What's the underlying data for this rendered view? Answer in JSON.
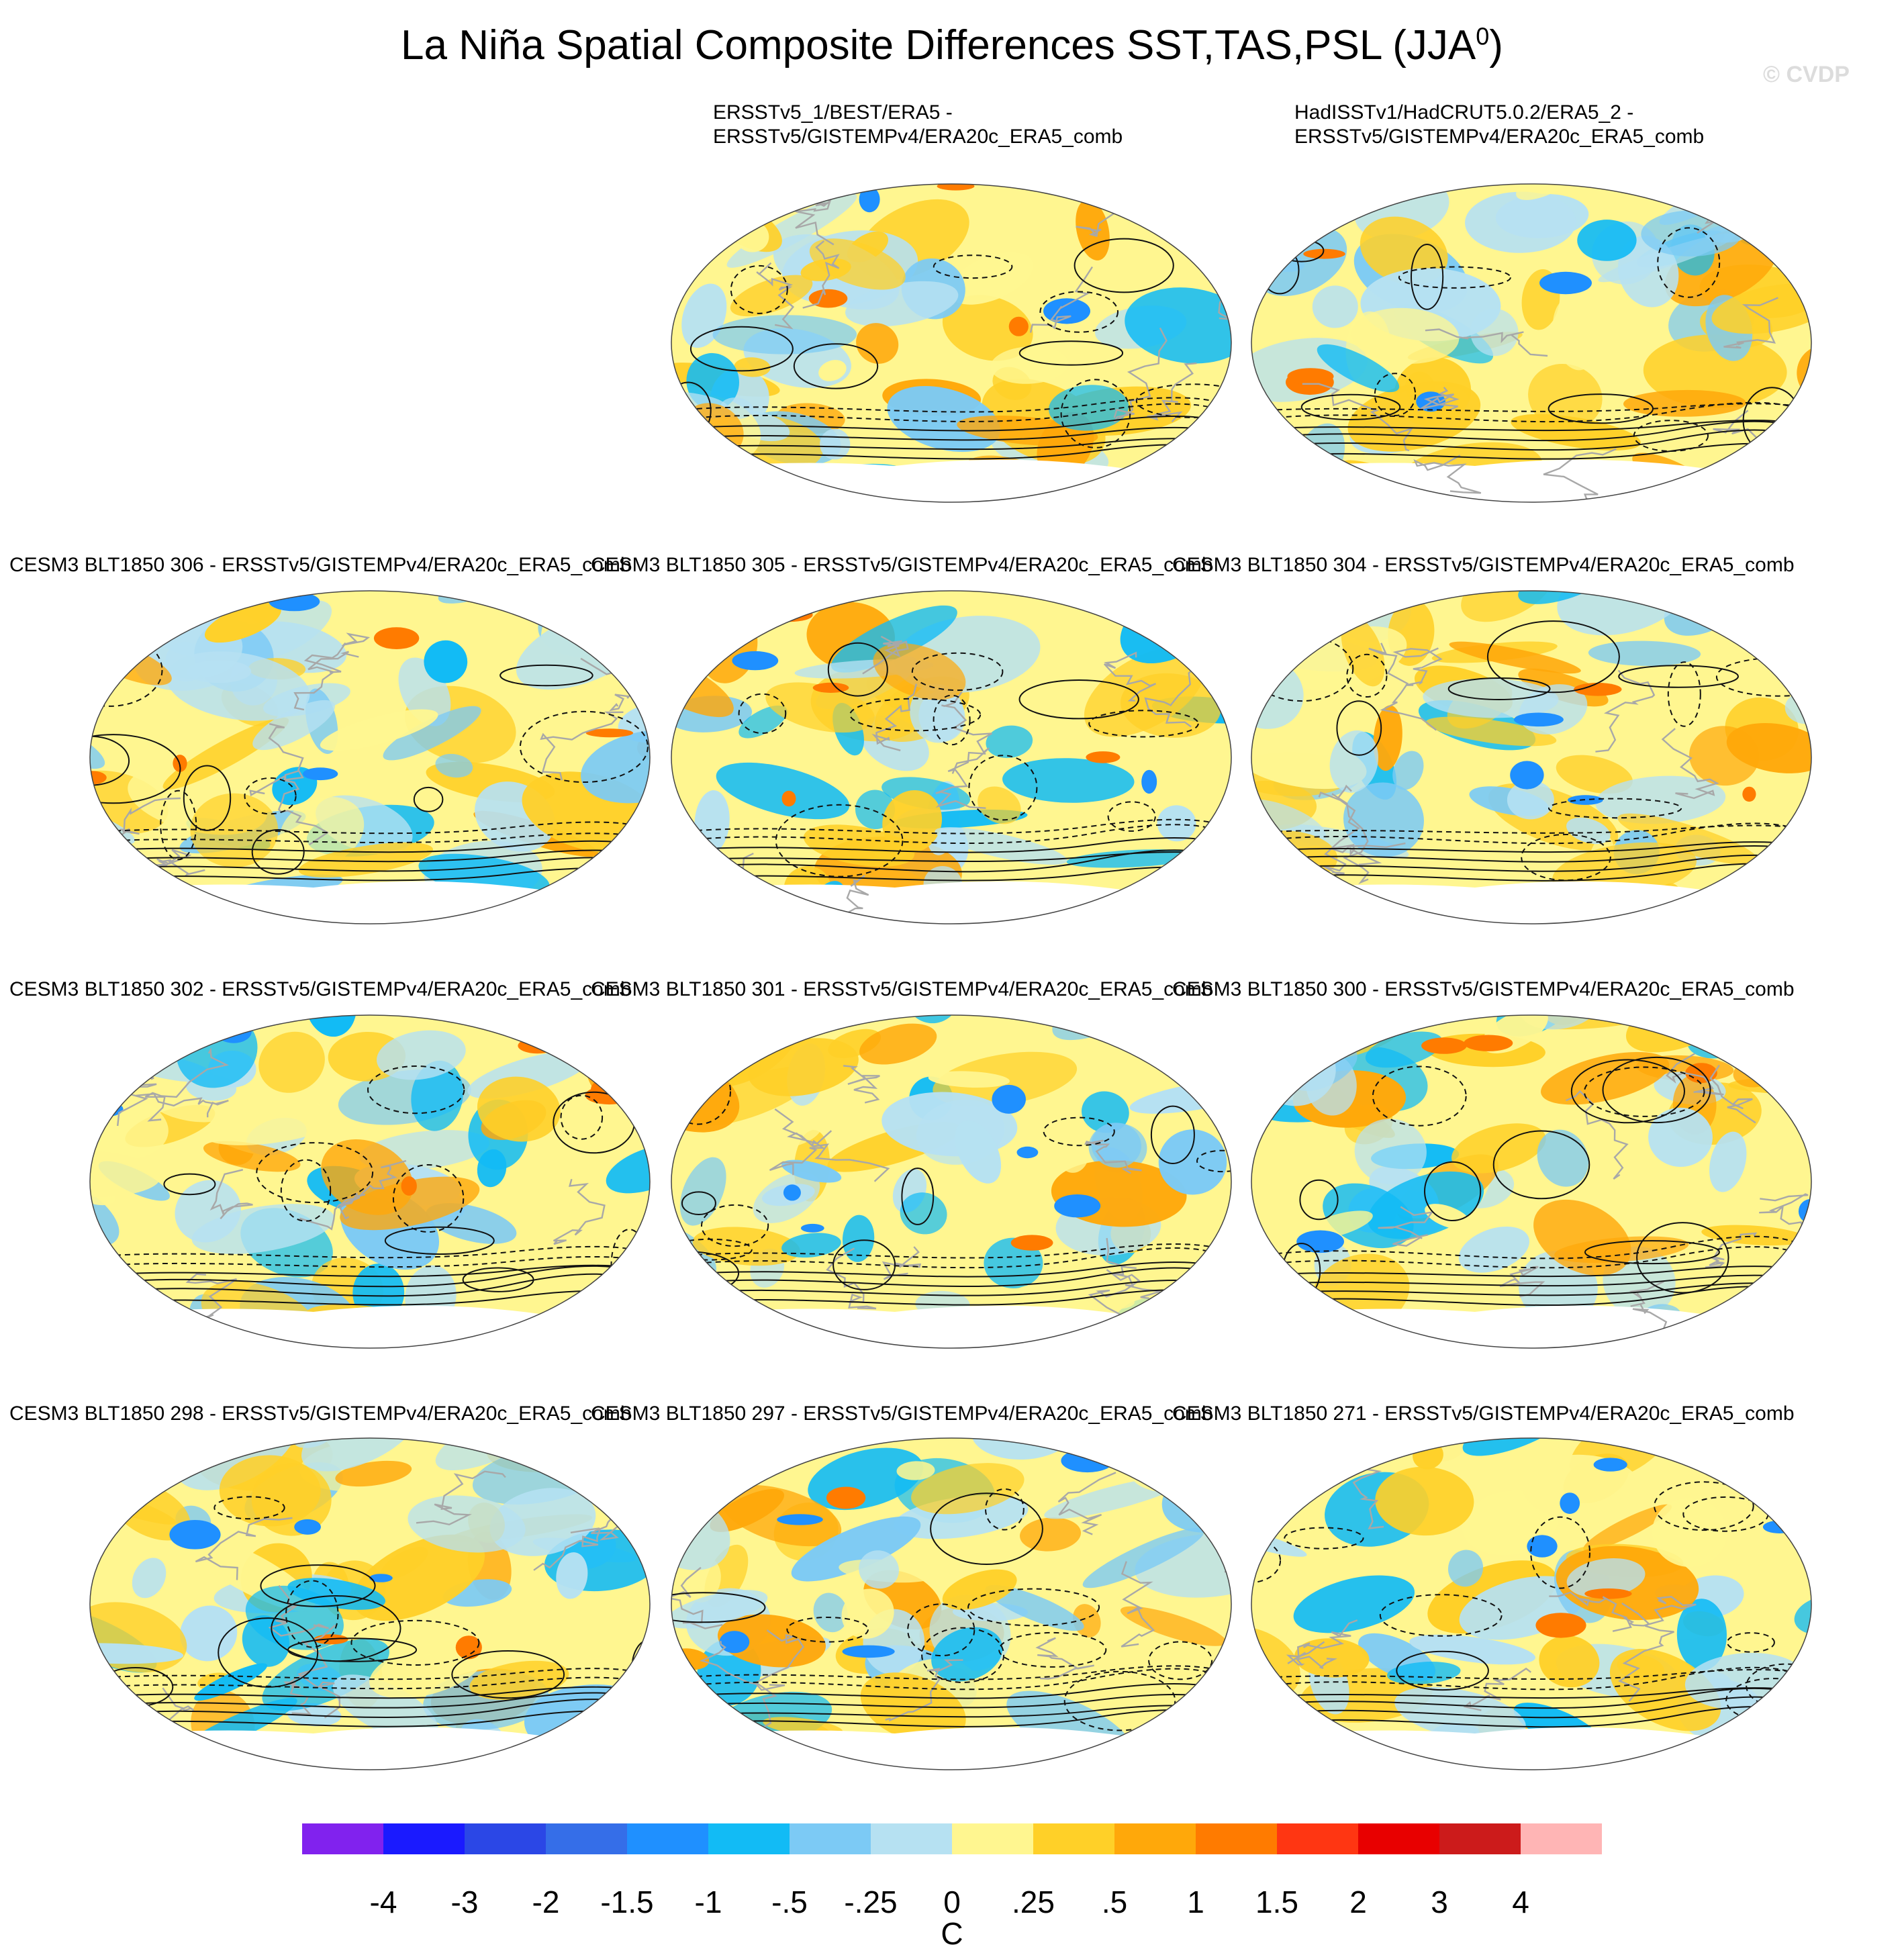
{
  "figure": {
    "title": "La Niña Spatial Composite Differences SST,TAS,PSL (JJA",
    "title_sup": "0",
    "title_close": ")",
    "watermark": "© CVDP"
  },
  "panels": [
    {
      "title_line1": "ERSSTv5_1/BEST/ERA5 -",
      "title_line2": "ERSSTv5/GISTEMPv4/ERA20c_ERA5_comb",
      "seed": 11
    },
    {
      "title_line1": "HadISSTv1/HadCRUT5.0.2/ERA5_2 -",
      "title_line2": "ERSSTv5/GISTEMPv4/ERA20c_ERA5_comb",
      "seed": 23
    },
    {
      "title_line1": "CESM3 BLT1850 306 - ERSSTv5/GISTEMPv4/ERA20c_ERA5_comb",
      "title_line2": "",
      "seed": 37
    },
    {
      "title_line1": "CESM3 BLT1850 305 - ERSSTv5/GISTEMPv4/ERA20c_ERA5_comb",
      "title_line2": "",
      "seed": 41
    },
    {
      "title_line1": "CESM3 BLT1850 304 - ERSSTv5/GISTEMPv4/ERA20c_ERA5_comb",
      "title_line2": "",
      "seed": 53
    },
    {
      "title_line1": "CESM3 BLT1850 302 - ERSSTv5/GISTEMPv4/ERA20c_ERA5_comb",
      "title_line2": "",
      "seed": 67
    },
    {
      "title_line1": "CESM3 BLT1850 301 - ERSSTv5/GISTEMPv4/ERA20c_ERA5_comb",
      "title_line2": "",
      "seed": 71
    },
    {
      "title_line1": "CESM3 BLT1850 300 - ERSSTv5/GISTEMPv4/ERA20c_ERA5_comb",
      "title_line2": "",
      "seed": 83
    },
    {
      "title_line1": "CESM3 BLT1850 298 - ERSSTv5/GISTEMPv4/ERA20c_ERA5_comb",
      "title_line2": "",
      "seed": 97
    },
    {
      "title_line1": "CESM3 BLT1850 297 - ERSSTv5/GISTEMPv4/ERA20c_ERA5_comb",
      "title_line2": "",
      "seed": 101
    },
    {
      "title_line1": "CESM3 BLT1850 271 - ERSSTv5/GISTEMPv4/ERA20c_ERA5_comb",
      "title_line2": "",
      "seed": 113
    }
  ],
  "colorbar": {
    "units": "C",
    "labels": [
      "-4",
      "-3",
      "-2",
      "-1.5",
      "-1",
      "-.5",
      "-.25",
      "0",
      ".25",
      ".5",
      "1",
      "1.5",
      "2",
      "3",
      "4"
    ],
    "colors": [
      "#8122ee",
      "#1a1aff",
      "#2b47e6",
      "#356ee8",
      "#1f90ff",
      "#12bbf5",
      "#7ccaf5",
      "#b6e1f2",
      "#fff690",
      "#ffd028",
      "#ffa80a",
      "#ff7b00",
      "#ff3612",
      "#e80000",
      "#cc1b1b",
      "#ffb5b5"
    ]
  }
}
